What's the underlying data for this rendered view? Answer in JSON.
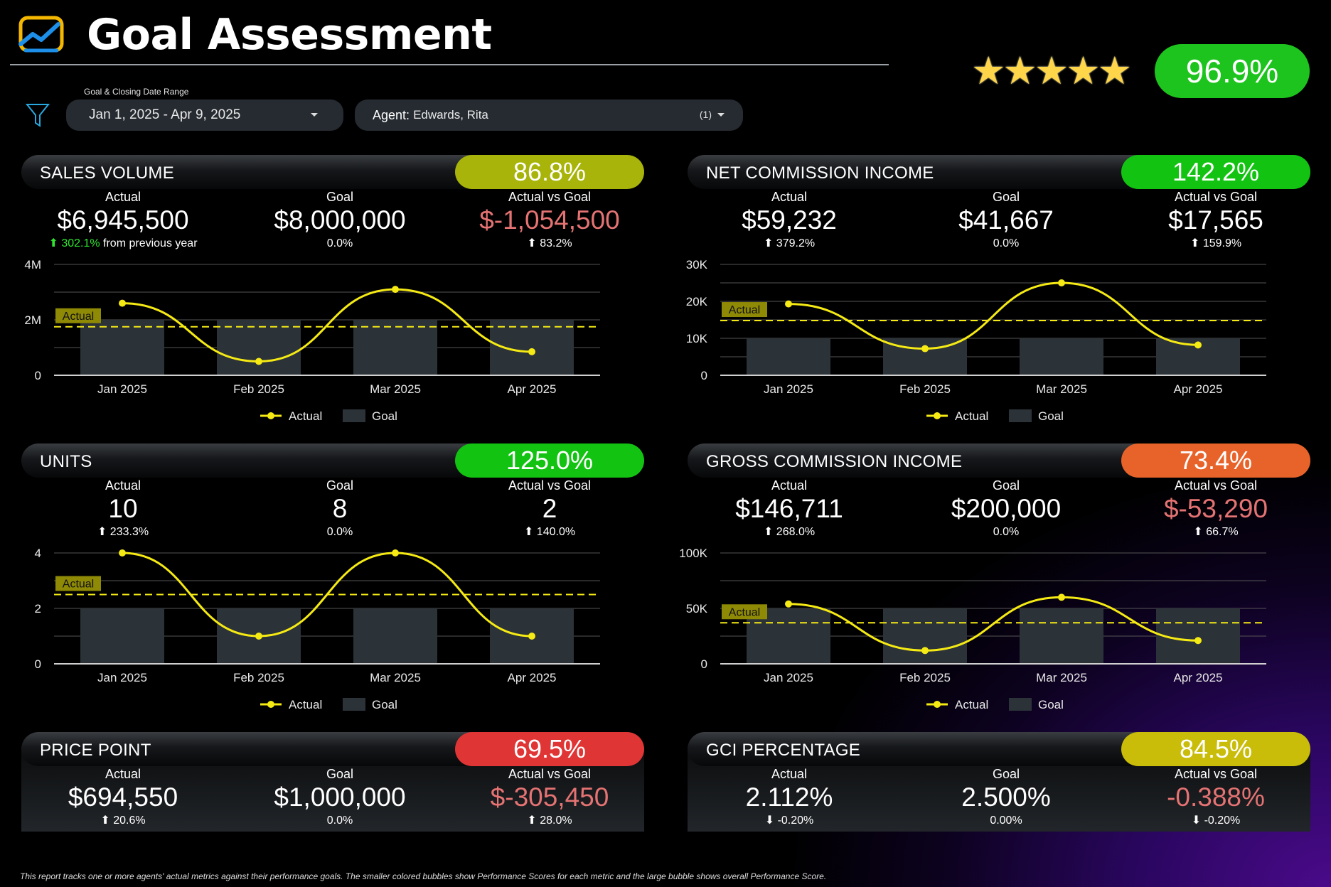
{
  "header": {
    "title": "Goal Assessment",
    "stars": "★★★★★",
    "overall_score": "96.9%",
    "overall_color": "#1ec41e"
  },
  "filters": {
    "date_label": "Goal & Closing Date Range",
    "date_value": "Jan 1, 2025 - Apr 9, 2025",
    "agent_key": "Agent",
    "agent_value": "Edwards, Rita",
    "agent_count": "(1)"
  },
  "panels": {
    "sales_volume": {
      "title": "SALES VOLUME",
      "pct": "86.8%",
      "pct_color": "#a8b40a",
      "actual_label": "Actual",
      "actual": "$6,945,500",
      "actual_delta": "302.1%",
      "actual_suffix": "from previous year",
      "goal_label": "Goal",
      "goal": "$8,000,000",
      "goal_sub": "0.0%",
      "avg_label": "Actual vs Goal",
      "avg": "$-1,054,500",
      "avg_delta": "83.2%"
    },
    "nci": {
      "title": "NET COMMISSION INCOME",
      "pct": "142.2%",
      "pct_color": "#12c312",
      "actual_label": "Actual",
      "actual": "$59,232",
      "actual_delta": "379.2%",
      "goal_label": "Goal",
      "goal": "$41,667",
      "goal_sub": "0.0%",
      "avg_label": "Actual vs Goal",
      "avg": "$17,565",
      "avg_delta": "159.9%"
    },
    "units": {
      "title": "UNITS",
      "pct": "125.0%",
      "pct_color": "#12c312",
      "actual_label": "Actual",
      "actual": "10",
      "actual_delta": "233.3%",
      "goal_label": "Goal",
      "goal": "8",
      "goal_sub": "0.0%",
      "avg_label": "Actual vs Goal",
      "avg": "2",
      "avg_delta": "140.0%"
    },
    "gci": {
      "title": "GROSS COMMISSION INCOME",
      "pct": "73.4%",
      "pct_color": "#e8632a",
      "actual_label": "Actual",
      "actual": "$146,711",
      "actual_delta": "268.0%",
      "goal_label": "Goal",
      "goal": "$200,000",
      "goal_sub": "0.0%",
      "avg_label": "Actual vs Goal",
      "avg": "$-53,290",
      "avg_delta": "66.7%"
    },
    "price_point": {
      "title": "PRICE POINT",
      "pct": "69.5%",
      "pct_color": "#e03535",
      "actual_label": "Actual",
      "actual": "$694,550",
      "actual_delta": "20.6%",
      "goal_label": "Goal",
      "goal": "$1,000,000",
      "goal_sub": "0.0%",
      "avg_label": "Actual vs Goal",
      "avg": "$-305,450",
      "avg_delta": "28.0%"
    },
    "gci_pct": {
      "title": "GCI PERCENTAGE",
      "pct": "84.5%",
      "pct_color": "#c9bd0a",
      "actual_label": "Actual",
      "actual": "2.112%",
      "actual_delta": "-0.20%",
      "goal_label": "Goal",
      "goal": "2.500%",
      "goal_sub": "0.00%",
      "avg_label": "Actual vs Goal",
      "avg": "-0.388%",
      "avg_delta": "-0.20%"
    }
  },
  "chart_data": [
    {
      "id": "sales_volume",
      "type": "bar",
      "categories": [
        "Jan 2025",
        "Feb 2025",
        "Mar 2025",
        "Apr 2025"
      ],
      "series": [
        {
          "name": "Goal",
          "values": [
            2000000,
            2000000,
            2000000,
            2000000
          ]
        },
        {
          "name": "Actual",
          "values": [
            2600000,
            500000,
            3100000,
            850000
          ]
        }
      ],
      "average_line": 1750000,
      "average_label": "Actual",
      "ylim": [
        0,
        4000000
      ],
      "yticks": [
        "0",
        "2M",
        "4M"
      ],
      "ytick_values": [
        0,
        2000000,
        4000000
      ]
    },
    {
      "id": "nci",
      "type": "bar",
      "categories": [
        "Jan 2025",
        "Feb 2025",
        "Mar 2025",
        "Apr 2025"
      ],
      "series": [
        {
          "name": "Goal",
          "values": [
            10000,
            10000,
            10000,
            10000
          ]
        },
        {
          "name": "Actual",
          "values": [
            19300,
            7200,
            25000,
            8200
          ]
        }
      ],
      "average_line": 14800,
      "average_label": "Actual",
      "ylim": [
        0,
        30000
      ],
      "yticks": [
        "0",
        "10K",
        "20K",
        "30K"
      ],
      "ytick_values": [
        0,
        10000,
        20000,
        30000
      ]
    },
    {
      "id": "units",
      "type": "bar",
      "categories": [
        "Jan 2025",
        "Feb 2025",
        "Mar 2025",
        "Apr 2025"
      ],
      "series": [
        {
          "name": "Goal",
          "values": [
            2,
            2,
            2,
            2
          ]
        },
        {
          "name": "Actual",
          "values": [
            4,
            1,
            4,
            1
          ]
        }
      ],
      "average_line": 2.5,
      "average_label": "Actual",
      "ylim": [
        0,
        4
      ],
      "yticks": [
        "0",
        "2",
        "4"
      ],
      "ytick_values": [
        0,
        2,
        4
      ]
    },
    {
      "id": "gci",
      "type": "bar",
      "categories": [
        "Jan 2025",
        "Feb 2025",
        "Mar 2025",
        "Apr 2025"
      ],
      "series": [
        {
          "name": "Goal",
          "values": [
            50000,
            50000,
            50000,
            50000
          ]
        },
        {
          "name": "Actual",
          "values": [
            54000,
            12000,
            60000,
            21000
          ]
        }
      ],
      "average_line": 37000,
      "average_label": "Actual",
      "ylim": [
        0,
        100000
      ],
      "yticks": [
        "0",
        "50K",
        "100K"
      ],
      "ytick_values": [
        0,
        50000,
        100000
      ]
    }
  ],
  "legend": {
    "actual": "Actual",
    "goal": "Goal"
  },
  "colors": {
    "line": "#f5ea14",
    "bar": "#2b3238",
    "axis": "#d0d0d0",
    "grid": "#555"
  },
  "footnote": "This report tracks one or more agents' actual metrics against their performance goals. The smaller colored bubbles show Performance Scores for each metric and the large bubble shows overall Performance Score."
}
